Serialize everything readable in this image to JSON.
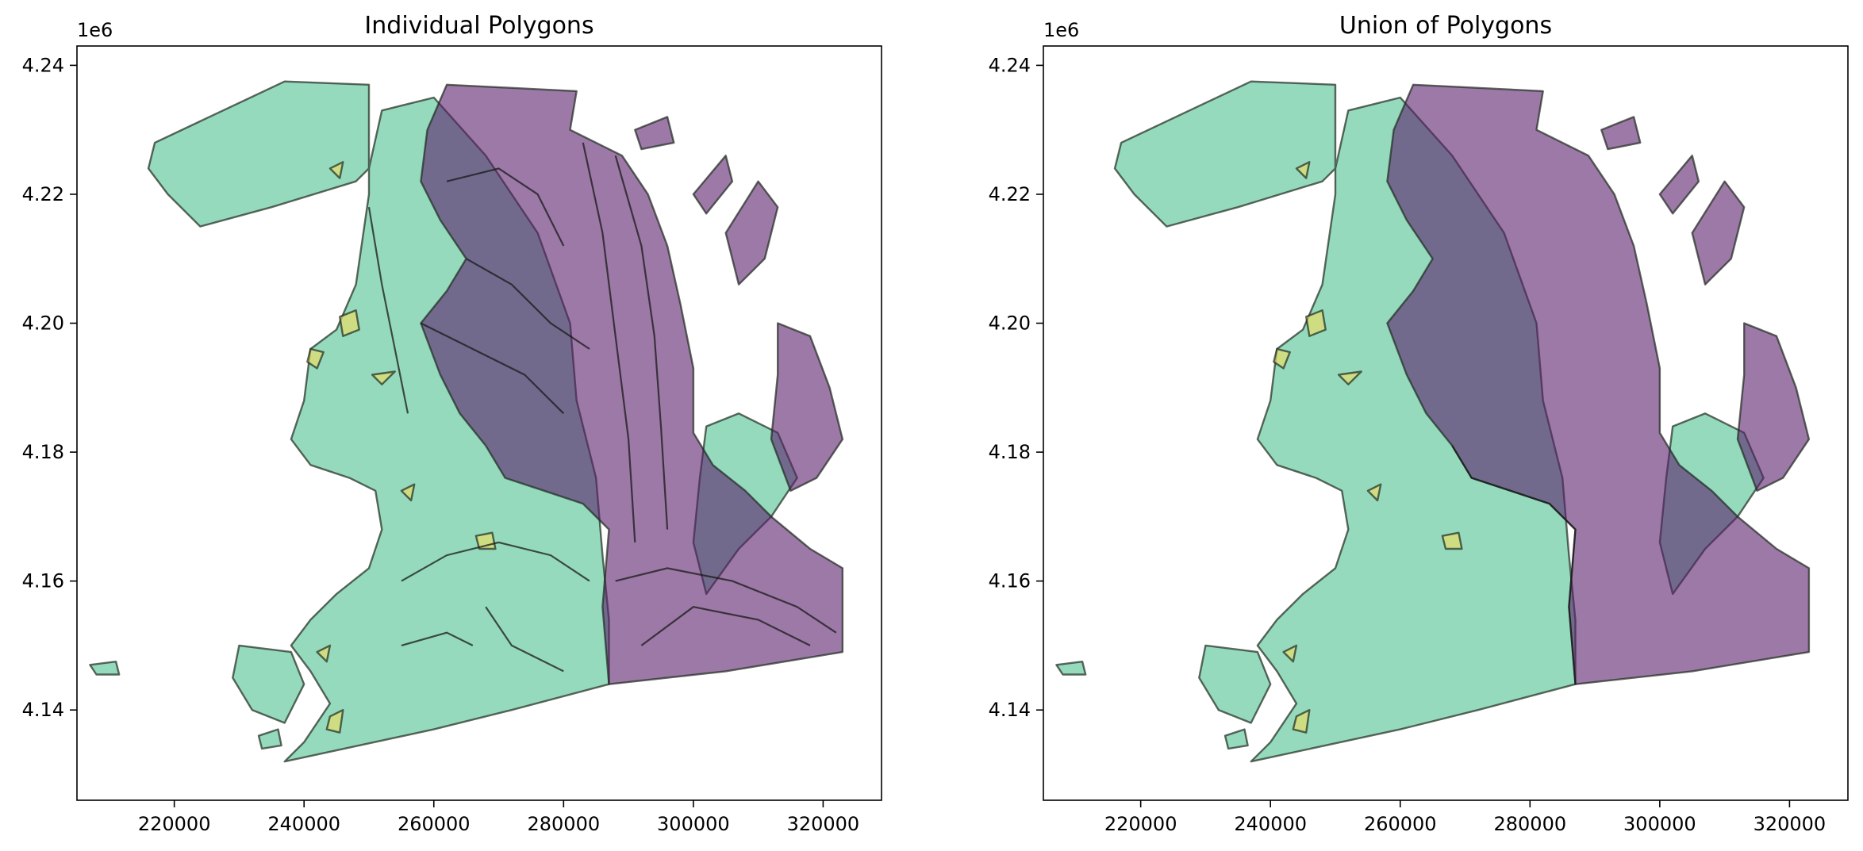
{
  "figure": {
    "panels": [
      {
        "title": "Individual Polygons",
        "x_ticks": [
          "220000",
          "240000",
          "260000",
          "280000",
          "300000",
          "320000"
        ],
        "y_ticks": [
          "4.14",
          "4.16",
          "4.18",
          "4.20",
          "4.22",
          "4.24"
        ],
        "y_offset_label": "1e6",
        "shows_internal_boundaries": true
      },
      {
        "title": "Union of Polygons",
        "x_ticks": [
          "220000",
          "240000",
          "260000",
          "280000",
          "300000",
          "320000"
        ],
        "y_ticks": [
          "4.14",
          "4.16",
          "4.18",
          "4.20",
          "4.22",
          "4.24"
        ],
        "y_offset_label": "1e6",
        "shows_internal_boundaries": false
      }
    ],
    "colors": {
      "green_class": "#4fc291",
      "purple_class": "#5a1f6a",
      "yellow_class": "#f5e05a",
      "outline": "#1f2a1f"
    }
  },
  "chart_data": [
    {
      "type": "map",
      "title": "Individual Polygons",
      "xlim": [
        205000,
        329000
      ],
      "ylim": [
        4126000,
        4243000
      ],
      "x_tick_values": [
        220000,
        240000,
        260000,
        280000,
        300000,
        320000
      ],
      "y_tick_values": [
        4140000,
        4160000,
        4180000,
        4200000,
        4220000,
        4240000
      ],
      "classes": [
        "green",
        "purple",
        "yellow"
      ]
    },
    {
      "type": "map",
      "title": "Union of Polygons",
      "xlim": [
        205000,
        329000
      ],
      "ylim": [
        4126000,
        4243000
      ],
      "x_tick_values": [
        220000,
        240000,
        260000,
        280000,
        300000,
        320000
      ],
      "y_tick_values": [
        4140000,
        4160000,
        4180000,
        4200000,
        4220000,
        4240000
      ],
      "classes": [
        "green",
        "purple",
        "yellow"
      ]
    }
  ]
}
